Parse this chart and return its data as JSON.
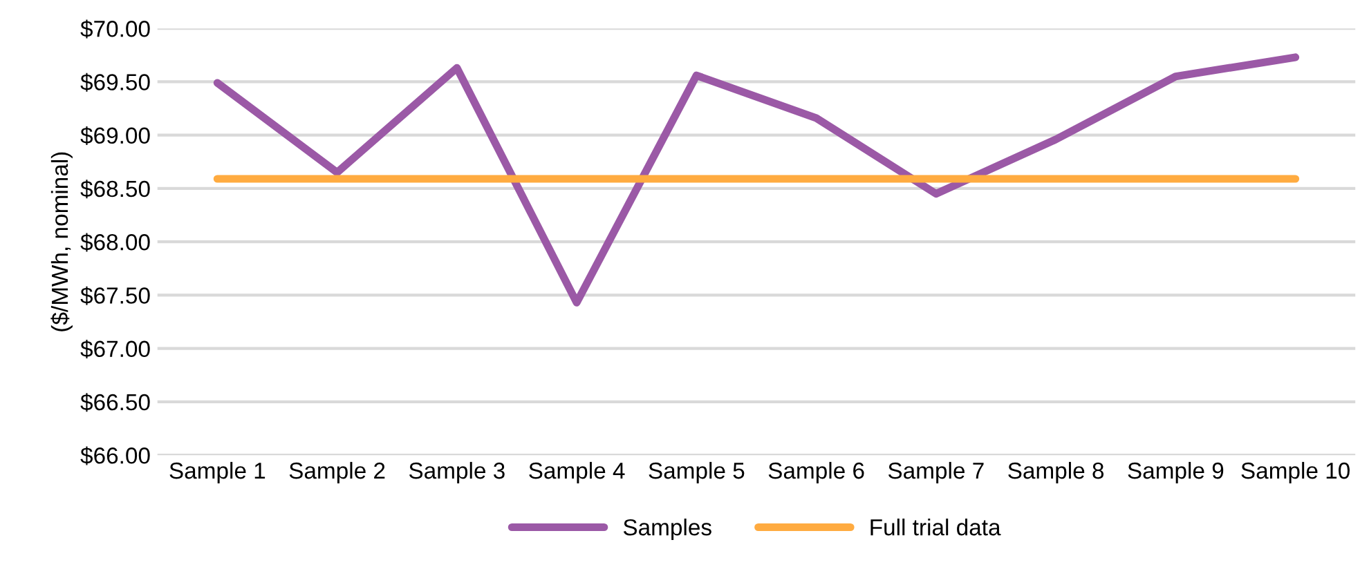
{
  "chart_data": {
    "type": "line",
    "ylabel": "($/MWh, nominal)",
    "categories": [
      "Sample 1",
      "Sample 2",
      "Sample 3",
      "Sample 4",
      "Sample 5",
      "Sample 6",
      "Sample 7",
      "Sample 8",
      "Sample 9",
      "Sample 10"
    ],
    "series": [
      {
        "name": "Samples",
        "color": "#9b59a6",
        "values": [
          69.49,
          68.65,
          69.63,
          67.43,
          69.56,
          69.16,
          68.45,
          68.96,
          69.55,
          69.73
        ]
      },
      {
        "name": "Full trial data",
        "color": "#ffab40",
        "values": [
          68.59,
          68.59,
          68.59,
          68.59,
          68.59,
          68.59,
          68.59,
          68.59,
          68.59,
          68.59
        ]
      }
    ],
    "ylim": [
      66,
      70
    ],
    "yticks": [
      {
        "value": 66,
        "label": "$66.00"
      },
      {
        "value": 66.5,
        "label": "$66.50"
      },
      {
        "value": 67,
        "label": "$67.00"
      },
      {
        "value": 67.5,
        "label": "$67.50"
      },
      {
        "value": 68,
        "label": "$68.00"
      },
      {
        "value": 68.5,
        "label": "$68.50"
      },
      {
        "value": 69,
        "label": "$69.00"
      },
      {
        "value": 69.5,
        "label": "$69.50"
      },
      {
        "value": 70,
        "label": "$70.00"
      }
    ],
    "grid": "y",
    "legend": "bottom"
  }
}
